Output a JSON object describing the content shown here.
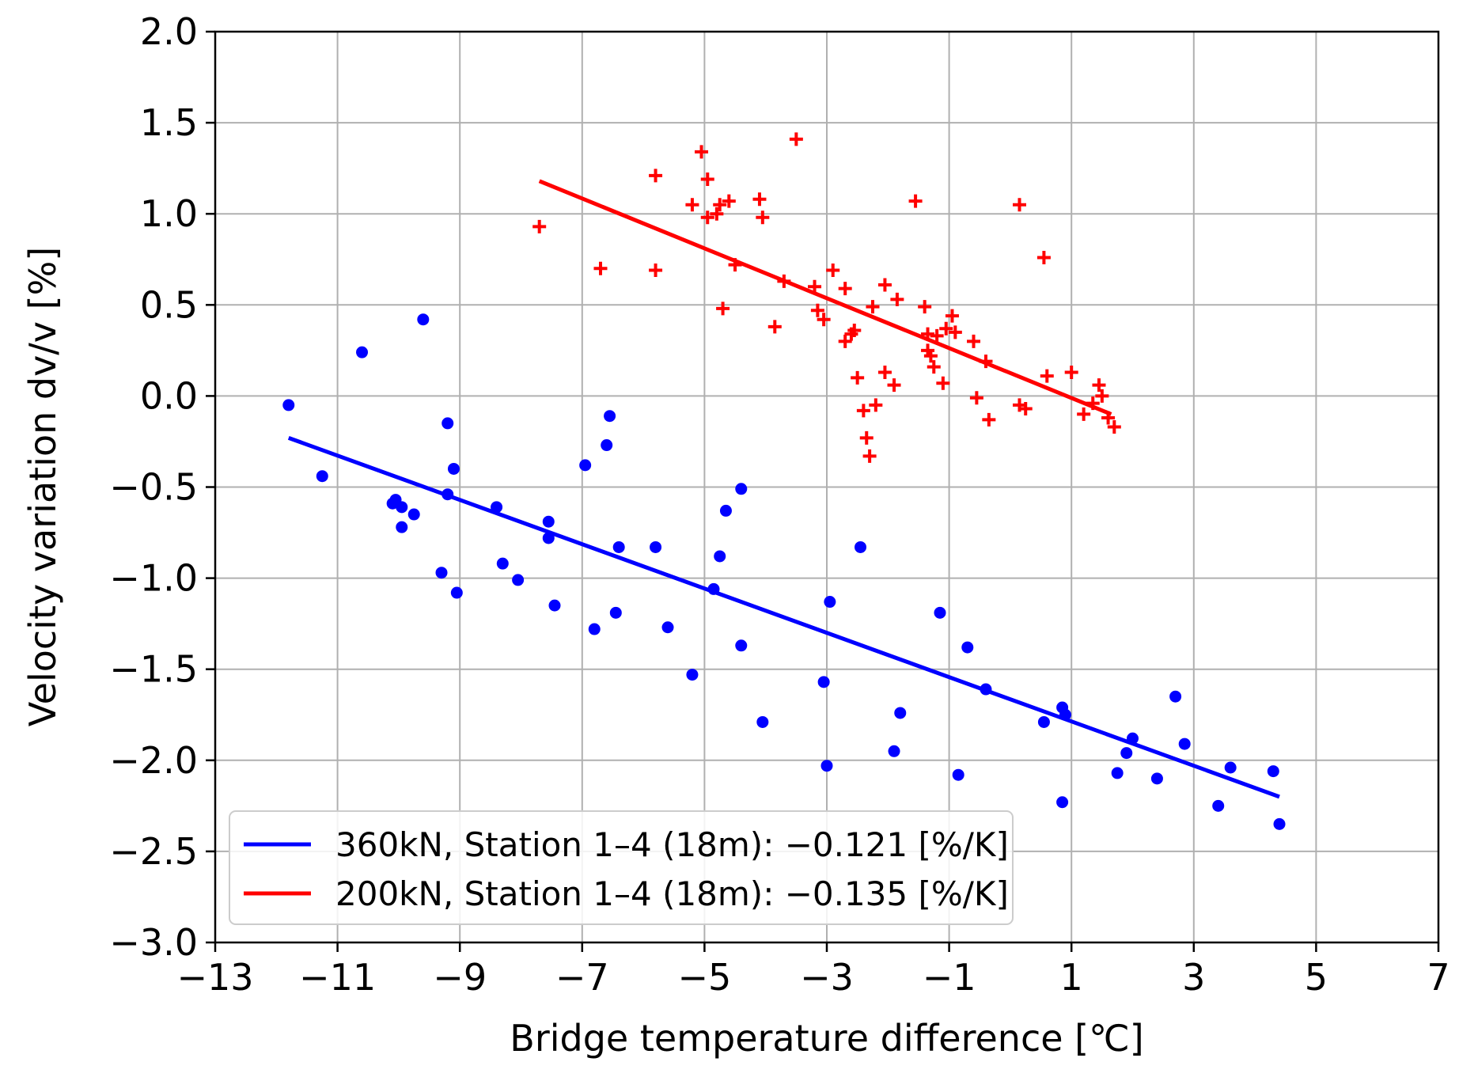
{
  "chart_data": {
    "type": "scatter",
    "xlabel": "Bridge temperature difference [℃]",
    "ylabel": "Velocity variation dv/v [%]",
    "xlim": [
      -13,
      7
    ],
    "ylim": [
      -3.0,
      2.0
    ],
    "xticks": [
      -13,
      -11,
      -9,
      -7,
      -5,
      -3,
      -1,
      1,
      3,
      5,
      7
    ],
    "xtick_labels": [
      "−13",
      "−11",
      "−9",
      "−7",
      "−5",
      "−3",
      "−1",
      "1",
      "3",
      "5",
      "7"
    ],
    "yticks": [
      2.0,
      1.5,
      1.0,
      0.5,
      0.0,
      -0.5,
      -1.0,
      -1.5,
      -2.0,
      -2.5,
      -3.0
    ],
    "ytick_labels": [
      "2.0",
      "1.5",
      "1.0",
      "0.5",
      "0.0",
      "−0.5",
      "−1.0",
      "−1.5",
      "−2.0",
      "−2.5",
      "−3.0"
    ],
    "grid": true,
    "legend_position": "bottom-left",
    "series": [
      {
        "name": "360kN, Station 1–4 (18m): −0.121 [%/K]",
        "color": "#0000ff",
        "marker": "circle",
        "fit": {
          "x": [
            -11.8,
            4.4
          ],
          "y": [
            -0.23,
            -2.2
          ]
        },
        "points": [
          [
            -11.8,
            -0.05
          ],
          [
            -11.25,
            -0.44
          ],
          [
            -10.6,
            0.24
          ],
          [
            -10.1,
            -0.59
          ],
          [
            -10.05,
            -0.57
          ],
          [
            -9.95,
            -0.72
          ],
          [
            -9.95,
            -0.61
          ],
          [
            -9.75,
            -0.65
          ],
          [
            -9.6,
            0.42
          ],
          [
            -9.3,
            -0.97
          ],
          [
            -9.2,
            -0.15
          ],
          [
            -9.2,
            -0.54
          ],
          [
            -9.1,
            -0.4
          ],
          [
            -9.05,
            -1.08
          ],
          [
            -8.4,
            -0.61
          ],
          [
            -8.3,
            -0.92
          ],
          [
            -8.05,
            -1.01
          ],
          [
            -7.55,
            -0.69
          ],
          [
            -7.55,
            -0.78
          ],
          [
            -7.45,
            -1.15
          ],
          [
            -6.95,
            -0.38
          ],
          [
            -6.8,
            -1.28
          ],
          [
            -6.6,
            -0.27
          ],
          [
            -6.55,
            -0.11
          ],
          [
            -6.45,
            -1.19
          ],
          [
            -6.4,
            -0.83
          ],
          [
            -5.8,
            -0.83
          ],
          [
            -5.6,
            -1.27
          ],
          [
            -5.2,
            -1.53
          ],
          [
            -4.85,
            -1.06
          ],
          [
            -4.75,
            -0.88
          ],
          [
            -4.65,
            -0.63
          ],
          [
            -4.4,
            -0.51
          ],
          [
            -4.4,
            -1.37
          ],
          [
            -4.05,
            -1.79
          ],
          [
            -3.05,
            -1.57
          ],
          [
            -3.0,
            -2.03
          ],
          [
            -2.95,
            -1.13
          ],
          [
            -2.45,
            -0.83
          ],
          [
            -1.9,
            -1.95
          ],
          [
            -1.8,
            -1.74
          ],
          [
            -1.15,
            -1.19
          ],
          [
            -0.85,
            -2.08
          ],
          [
            -0.7,
            -1.38
          ],
          [
            -0.4,
            -1.61
          ],
          [
            0.55,
            -1.79
          ],
          [
            0.85,
            -1.71
          ],
          [
            0.85,
            -2.23
          ],
          [
            0.9,
            -1.75
          ],
          [
            1.75,
            -2.07
          ],
          [
            1.9,
            -1.96
          ],
          [
            2.0,
            -1.88
          ],
          [
            2.4,
            -2.1
          ],
          [
            2.7,
            -1.65
          ],
          [
            2.85,
            -1.91
          ],
          [
            3.4,
            -2.25
          ],
          [
            3.6,
            -2.04
          ],
          [
            4.3,
            -2.06
          ],
          [
            4.4,
            -2.35
          ]
        ]
      },
      {
        "name": "200kN, Station 1–4 (18m): −0.135 [%/K]",
        "color": "#ff0000",
        "marker": "plus",
        "fit": {
          "x": [
            -7.7,
            1.65
          ],
          "y": [
            1.18,
            -0.1
          ]
        },
        "points": [
          [
            -7.7,
            0.93
          ],
          [
            -6.7,
            0.7
          ],
          [
            -5.8,
            1.21
          ],
          [
            -5.8,
            0.69
          ],
          [
            -5.2,
            1.05
          ],
          [
            -5.05,
            1.34
          ],
          [
            -4.95,
            1.19
          ],
          [
            -4.95,
            0.98
          ],
          [
            -4.8,
            1.0
          ],
          [
            -4.75,
            1.05
          ],
          [
            -4.7,
            0.48
          ],
          [
            -4.6,
            1.07
          ],
          [
            -4.5,
            0.72
          ],
          [
            -4.1,
            1.08
          ],
          [
            -4.05,
            0.98
          ],
          [
            -3.85,
            0.38
          ],
          [
            -3.7,
            0.63
          ],
          [
            -3.5,
            1.41
          ],
          [
            -3.2,
            0.6
          ],
          [
            -3.15,
            0.47
          ],
          [
            -3.05,
            0.42
          ],
          [
            -2.9,
            0.69
          ],
          [
            -2.7,
            0.59
          ],
          [
            -2.7,
            0.3
          ],
          [
            -2.6,
            0.34
          ],
          [
            -2.55,
            0.36
          ],
          [
            -2.5,
            0.1
          ],
          [
            -2.4,
            -0.08
          ],
          [
            -2.35,
            -0.23
          ],
          [
            -2.3,
            -0.33
          ],
          [
            -2.25,
            0.49
          ],
          [
            -2.2,
            -0.05
          ],
          [
            -2.05,
            0.61
          ],
          [
            -2.05,
            0.13
          ],
          [
            -1.9,
            0.06
          ],
          [
            -1.85,
            0.53
          ],
          [
            -1.55,
            1.07
          ],
          [
            -1.4,
            0.49
          ],
          [
            -1.35,
            0.34
          ],
          [
            -1.35,
            0.25
          ],
          [
            -1.3,
            0.22
          ],
          [
            -1.25,
            0.16
          ],
          [
            -1.2,
            0.33
          ],
          [
            -1.1,
            0.07
          ],
          [
            -1.05,
            0.37
          ],
          [
            -0.95,
            0.44
          ],
          [
            -0.9,
            0.35
          ],
          [
            -0.6,
            0.3
          ],
          [
            -0.55,
            -0.01
          ],
          [
            -0.4,
            0.19
          ],
          [
            -0.35,
            -0.13
          ],
          [
            0.15,
            1.05
          ],
          [
            0.15,
            -0.05
          ],
          [
            0.25,
            -0.07
          ],
          [
            0.55,
            0.76
          ],
          [
            0.6,
            0.11
          ],
          [
            1.0,
            0.13
          ],
          [
            1.2,
            -0.1
          ],
          [
            1.35,
            -0.04
          ],
          [
            1.45,
            0.06
          ],
          [
            1.5,
            0.0
          ],
          [
            1.6,
            -0.12
          ],
          [
            1.7,
            -0.17
          ]
        ]
      }
    ]
  }
}
